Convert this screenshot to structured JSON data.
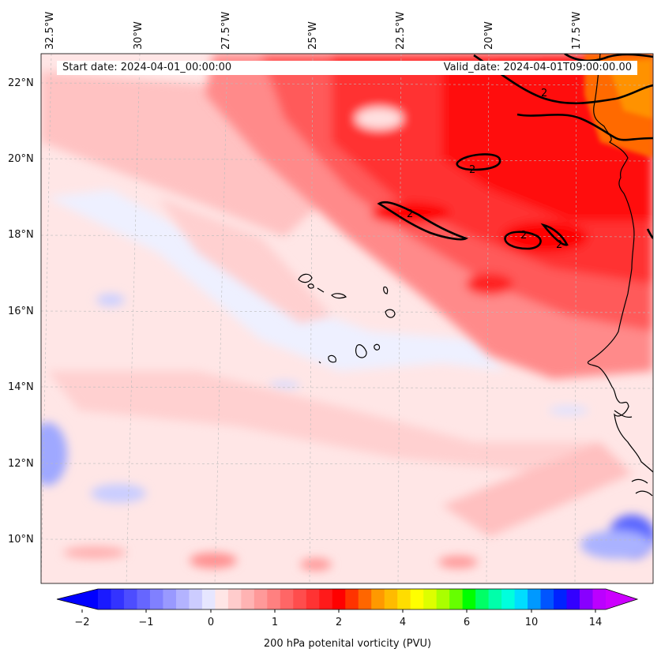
{
  "map": {
    "start_date": "Start date: 2024-04-01_00:00:00",
    "valid_date": "Valid_date: 2024-04-01T09:00:00.00",
    "longitude_labels": [
      "32.5°W",
      "30°W",
      "27.5°W",
      "25°W",
      "22.5°W",
      "20°W",
      "17.5°W"
    ],
    "latitude_labels": [
      "22°N",
      "20°N",
      "18°N",
      "16°N",
      "14°N",
      "12°N",
      "10°N"
    ],
    "contour_label": "2"
  },
  "colorbar": {
    "title": "200 hPa potenital vorticity (PVU)",
    "tick_labels": [
      "−2",
      "−1",
      "0",
      "1",
      "2",
      "4",
      "6",
      "10",
      "14"
    ],
    "colors": [
      "#1a1aff",
      "#3333ff",
      "#4d4dff",
      "#6666ff",
      "#8080ff",
      "#9999ff",
      "#b3b3ff",
      "#ccccff",
      "#e6e6ff",
      "#ffe6e6",
      "#ffcccc",
      "#ffb3b3",
      "#ff9999",
      "#ff8080",
      "#ff6666",
      "#ff4d4d",
      "#ff3333",
      "#ff1a1a",
      "#ff0000",
      "#ff3300",
      "#ff6600",
      "#ff9900",
      "#ffbb00",
      "#ffdd00",
      "#ffff00",
      "#ddff00",
      "#aaff00",
      "#66ff00",
      "#00ff00",
      "#00ff66",
      "#00ffaa",
      "#00ffdd",
      "#00ddff",
      "#0099ff",
      "#0055ff",
      "#0022ff",
      "#3300ff",
      "#8800ff",
      "#bb00ff"
    ],
    "under_color": "#0000ff",
    "over_color": "#cc00ff"
  }
}
